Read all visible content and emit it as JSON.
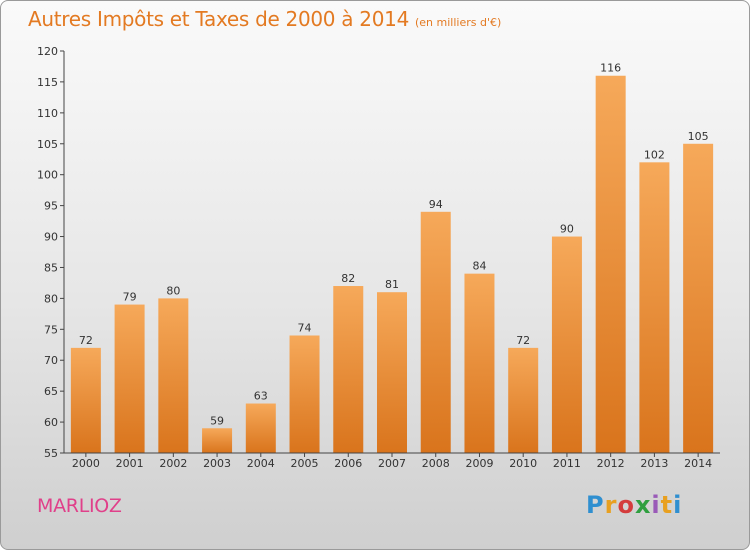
{
  "header": {
    "title": "Autres Impôts et Taxes de 2000 à 2014",
    "subtitle": "(en milliers d'€)"
  },
  "footer": {
    "city": "MARLIOZ",
    "logo": "Proxiti"
  },
  "colors": {
    "bar_top": "#f6a95a",
    "bar_bottom": "#d9741c",
    "title": "#e37a22",
    "city": "#e0408a"
  },
  "chart_data": {
    "type": "bar",
    "title": "Autres Impôts et Taxes de 2000 à 2014",
    "subtitle": "(en milliers d'€)",
    "xlabel": "",
    "ylabel": "",
    "categories": [
      "2000",
      "2001",
      "2002",
      "2003",
      "2004",
      "2005",
      "2006",
      "2007",
      "2008",
      "2009",
      "2010",
      "2011",
      "2012",
      "2013",
      "2014"
    ],
    "values": [
      72,
      79,
      80,
      59,
      63,
      74,
      82,
      81,
      94,
      84,
      72,
      90,
      116,
      102,
      105
    ],
    "ylim": [
      55,
      120
    ],
    "yticks": [
      55,
      60,
      65,
      70,
      75,
      80,
      85,
      90,
      95,
      100,
      105,
      110,
      115,
      120
    ],
    "grid": false,
    "legend": "none"
  }
}
